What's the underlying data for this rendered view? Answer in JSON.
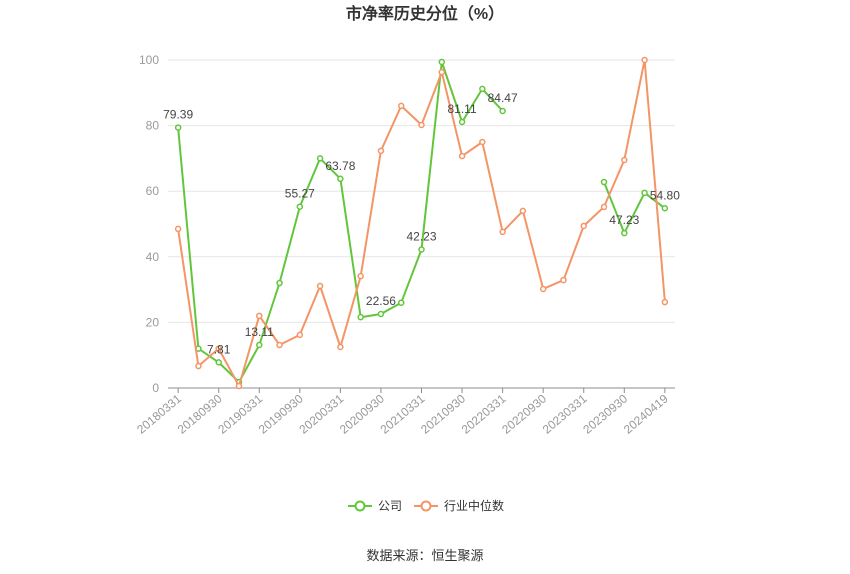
{
  "source": "数据来源：恒生聚源",
  "chart_data": {
    "type": "line",
    "title": "市净率历史分位（%）",
    "categories": [
      "20180331",
      "",
      "20180930",
      "",
      "20190331",
      "",
      "20190930",
      "",
      "20200331",
      "",
      "20200930",
      "",
      "20210331",
      "",
      "20210930",
      "",
      "20220331",
      "",
      "20220930",
      "",
      "20230331",
      "",
      "20230930",
      "",
      "20240419"
    ],
    "ylim": [
      0,
      100
    ],
    "yticks": [
      0,
      20,
      40,
      60,
      80,
      100
    ],
    "grid": true,
    "legend_position": "bottom",
    "series": [
      {
        "name": "公司",
        "color": "#62c63c",
        "values": [
          79.39,
          12.0,
          7.81,
          1.8,
          13.11,
          32.0,
          55.27,
          70.0,
          63.78,
          21.6,
          22.56,
          26.0,
          42.23,
          99.4,
          81.11,
          91.2,
          84.47,
          null,
          null,
          null,
          null,
          62.8,
          47.23,
          59.5,
          54.8
        ],
        "labels": [
          "79.39",
          null,
          "7.81",
          null,
          "13.11",
          null,
          "55.27",
          null,
          "63.78",
          null,
          "22.56",
          null,
          "42.23",
          null,
          "81.11",
          null,
          "84.47",
          null,
          null,
          null,
          null,
          null,
          "47.23",
          null,
          "54.80"
        ]
      },
      {
        "name": "行业中位数",
        "color": "#f39566",
        "values": [
          48.5,
          6.7,
          12.0,
          0.6,
          22.0,
          13.1,
          16.2,
          31.1,
          12.5,
          34.1,
          72.3,
          86.0,
          80.2,
          96.3,
          70.7,
          75.0,
          47.6,
          54.0,
          30.2,
          32.9,
          49.4,
          55.2,
          69.5,
          100.0,
          26.2
        ]
      }
    ]
  }
}
